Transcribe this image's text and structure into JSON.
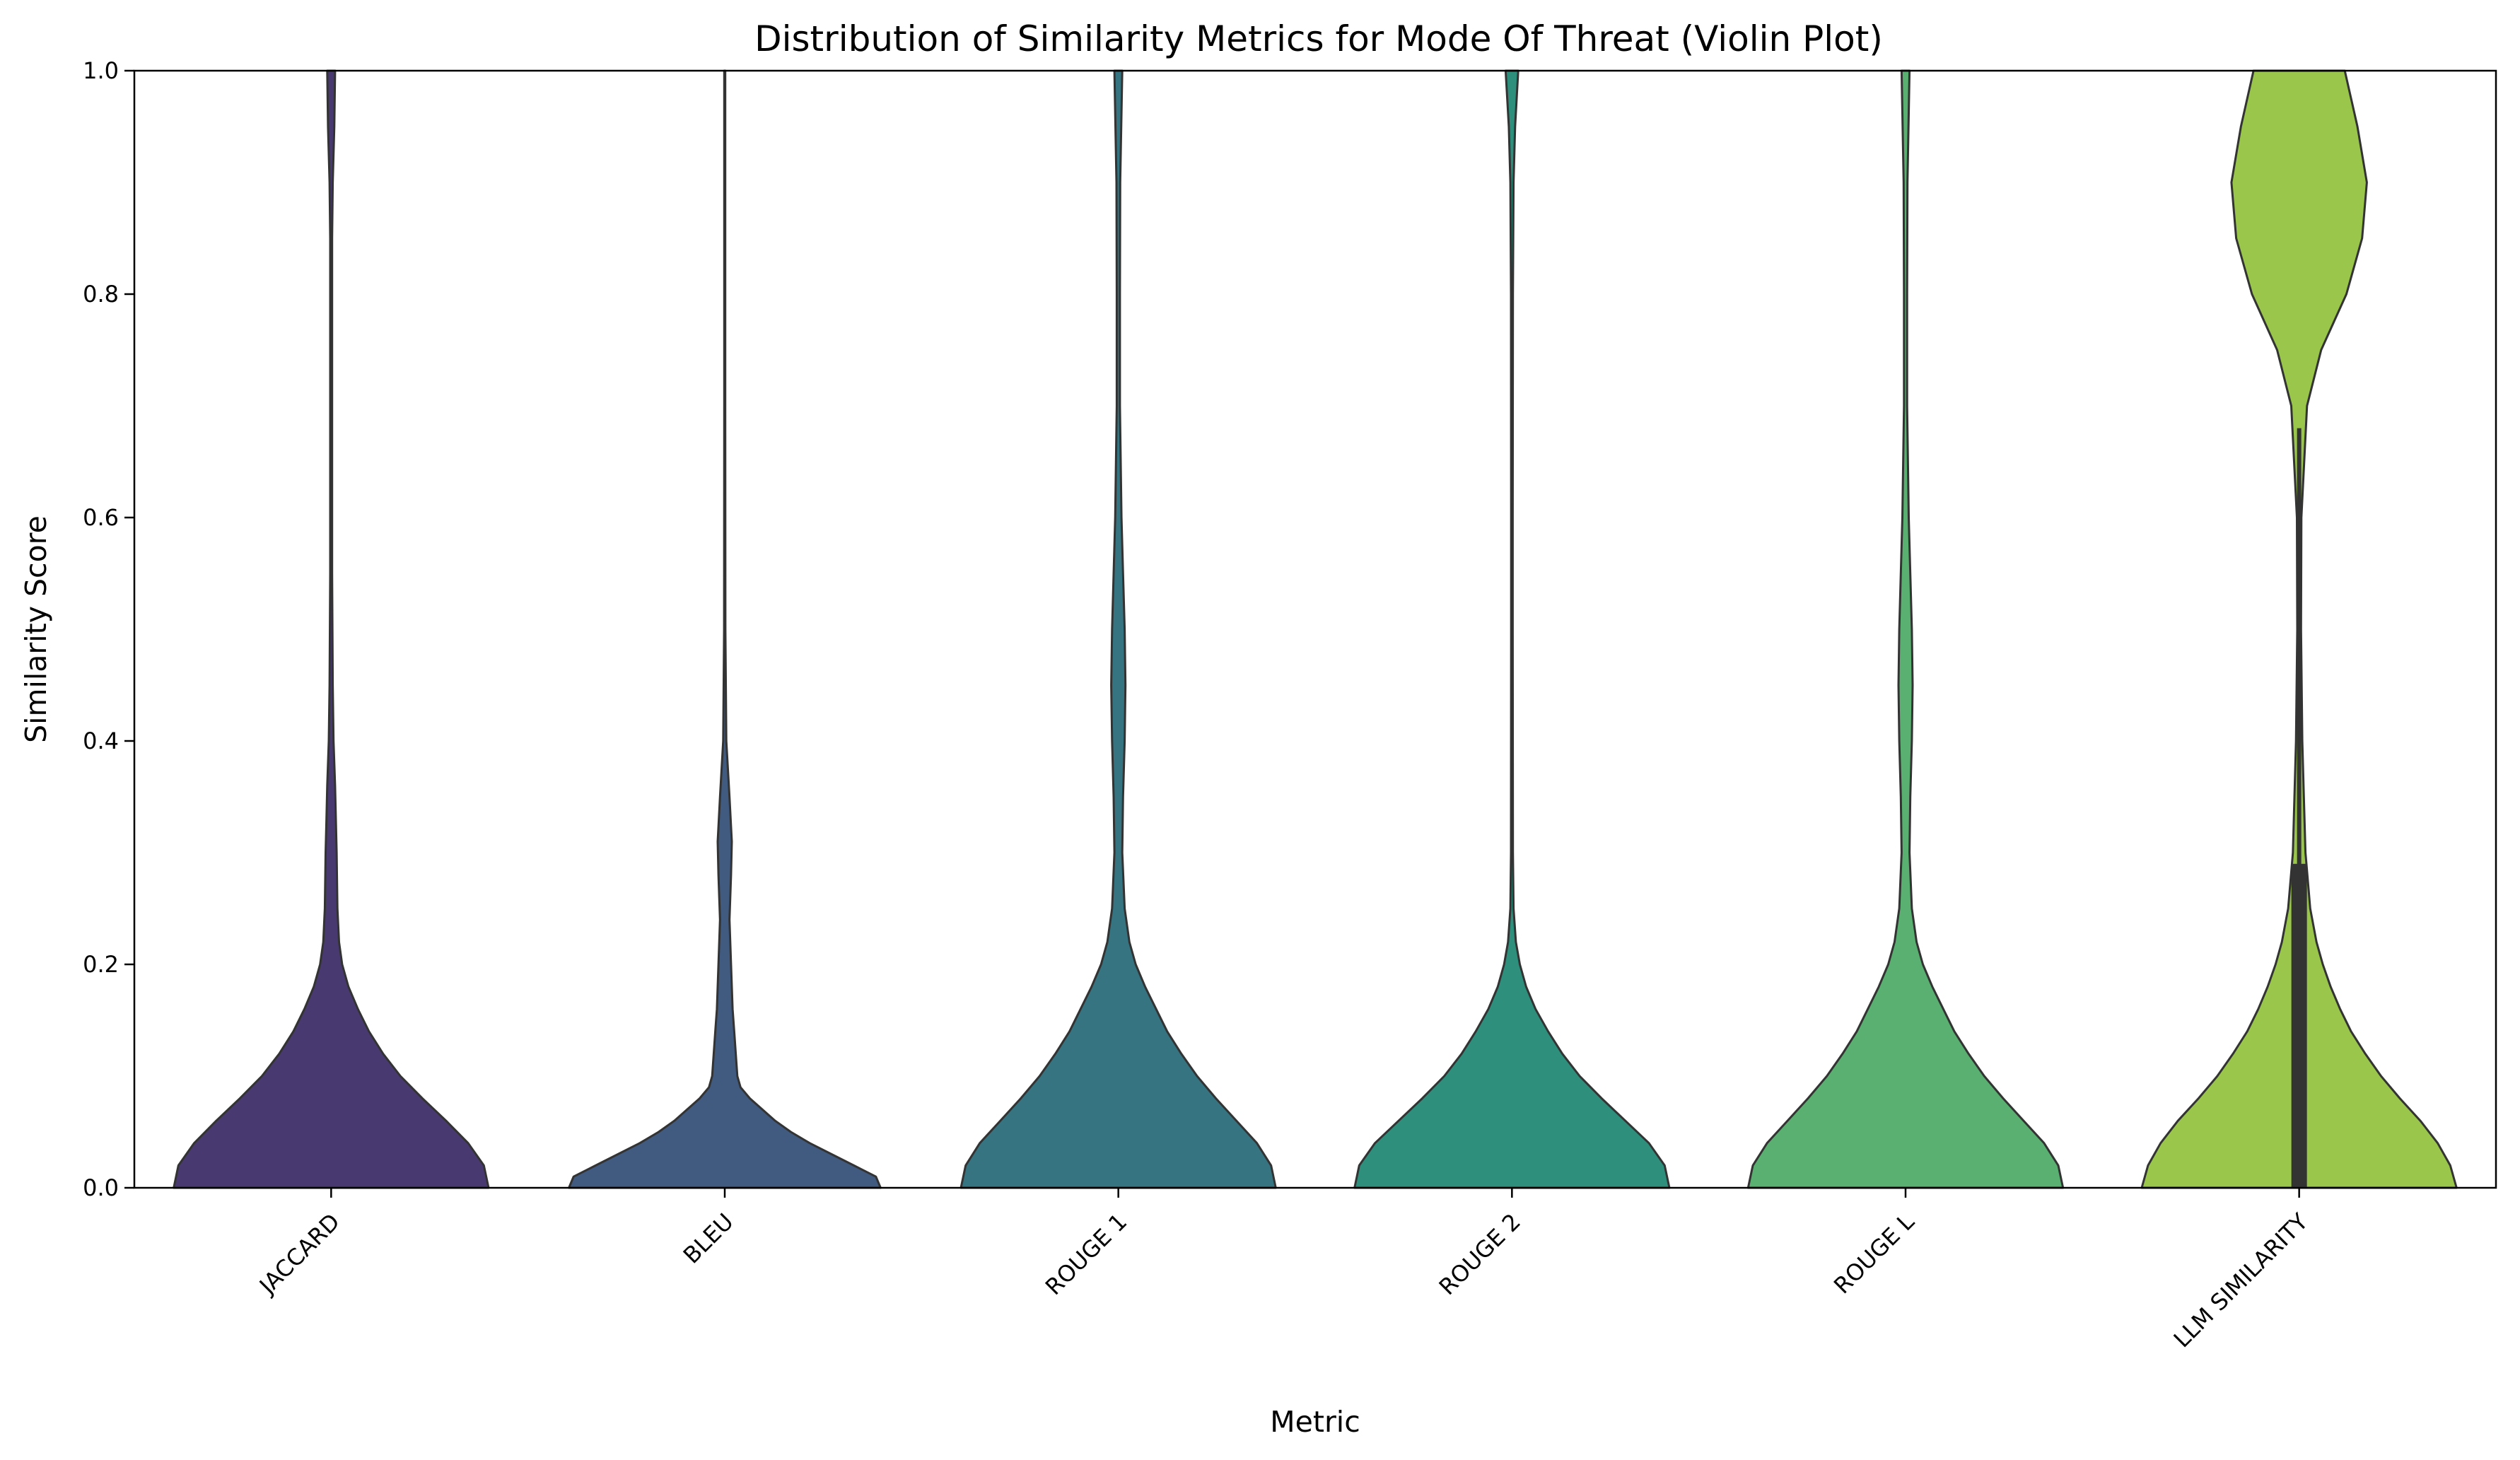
{
  "chart_data": {
    "type": "violin",
    "title": "Distribution of Similarity Metrics for Mode Of Threat (Violin Plot)",
    "xlabel": "Metric",
    "ylabel": "Similarity Score",
    "ylim": [
      0,
      1
    ],
    "yticks": [
      "0.0",
      "0.2",
      "0.4",
      "0.6",
      "0.8",
      "1.0"
    ],
    "grid": false,
    "categories": [
      "JACCARD",
      "BLEU",
      "ROUGE 1",
      "ROUGE 2",
      "ROUGE L",
      "LLM SIMILARITY"
    ],
    "violins": [
      {
        "category": "JACCARD",
        "color": "#483a70",
        "density": [
          [
            0.0,
            1.0
          ],
          [
            0.02,
            0.97
          ],
          [
            0.04,
            0.87
          ],
          [
            0.06,
            0.73
          ],
          [
            0.08,
            0.58
          ],
          [
            0.1,
            0.44
          ],
          [
            0.12,
            0.33
          ],
          [
            0.14,
            0.24
          ],
          [
            0.16,
            0.17
          ],
          [
            0.18,
            0.11
          ],
          [
            0.2,
            0.07
          ],
          [
            0.22,
            0.05
          ],
          [
            0.25,
            0.04
          ],
          [
            0.3,
            0.035
          ],
          [
            0.33,
            0.03
          ],
          [
            0.36,
            0.025
          ],
          [
            0.4,
            0.015
          ],
          [
            0.45,
            0.01
          ],
          [
            0.55,
            0.006
          ],
          [
            0.7,
            0.006
          ],
          [
            0.85,
            0.006
          ],
          [
            0.9,
            0.01
          ],
          [
            0.95,
            0.02
          ],
          [
            1.0,
            0.025
          ]
        ],
        "quartiles": null
      },
      {
        "category": "BLEU",
        "color": "#405a80",
        "density": [
          [
            0.0,
            0.99
          ],
          [
            0.01,
            0.96
          ],
          [
            0.02,
            0.82
          ],
          [
            0.03,
            0.68
          ],
          [
            0.04,
            0.54
          ],
          [
            0.05,
            0.42
          ],
          [
            0.06,
            0.32
          ],
          [
            0.07,
            0.24
          ],
          [
            0.08,
            0.16
          ],
          [
            0.09,
            0.1
          ],
          [
            0.1,
            0.08
          ],
          [
            0.12,
            0.07
          ],
          [
            0.14,
            0.06
          ],
          [
            0.16,
            0.05
          ],
          [
            0.2,
            0.04
          ],
          [
            0.24,
            0.03
          ],
          [
            0.28,
            0.04
          ],
          [
            0.31,
            0.045
          ],
          [
            0.35,
            0.03
          ],
          [
            0.4,
            0.01
          ],
          [
            0.5,
            0.004
          ],
          [
            0.7,
            0.003
          ],
          [
            1.0,
            0.003
          ]
        ],
        "quartiles": null
      },
      {
        "category": "ROUGE 1",
        "color": "#357480",
        "density": [
          [
            0.0,
            1.0
          ],
          [
            0.02,
            0.97
          ],
          [
            0.04,
            0.88
          ],
          [
            0.06,
            0.75
          ],
          [
            0.08,
            0.62
          ],
          [
            0.1,
            0.5
          ],
          [
            0.12,
            0.4
          ],
          [
            0.14,
            0.31
          ],
          [
            0.16,
            0.24
          ],
          [
            0.18,
            0.17
          ],
          [
            0.2,
            0.11
          ],
          [
            0.22,
            0.07
          ],
          [
            0.25,
            0.04
          ],
          [
            0.3,
            0.025
          ],
          [
            0.35,
            0.03
          ],
          [
            0.4,
            0.04
          ],
          [
            0.45,
            0.045
          ],
          [
            0.5,
            0.04
          ],
          [
            0.55,
            0.03
          ],
          [
            0.6,
            0.02
          ],
          [
            0.7,
            0.01
          ],
          [
            0.8,
            0.01
          ],
          [
            0.9,
            0.012
          ],
          [
            1.0,
            0.025
          ]
        ],
        "quartiles": null
      },
      {
        "category": "ROUGE 2",
        "color": "#2e8f7c",
        "density": [
          [
            0.0,
            1.0
          ],
          [
            0.02,
            0.97
          ],
          [
            0.04,
            0.87
          ],
          [
            0.06,
            0.72
          ],
          [
            0.08,
            0.57
          ],
          [
            0.1,
            0.43
          ],
          [
            0.12,
            0.32
          ],
          [
            0.14,
            0.23
          ],
          [
            0.16,
            0.15
          ],
          [
            0.18,
            0.09
          ],
          [
            0.2,
            0.05
          ],
          [
            0.22,
            0.025
          ],
          [
            0.25,
            0.01
          ],
          [
            0.3,
            0.006
          ],
          [
            0.5,
            0.005
          ],
          [
            0.6,
            0.005
          ],
          [
            0.8,
            0.006
          ],
          [
            0.9,
            0.01
          ],
          [
            0.95,
            0.02
          ],
          [
            1.0,
            0.04
          ]
        ],
        "quartiles": null
      },
      {
        "category": "ROUGE L",
        "color": "#59b070",
        "density": [
          [
            0.0,
            1.0
          ],
          [
            0.02,
            0.97
          ],
          [
            0.04,
            0.88
          ],
          [
            0.06,
            0.75
          ],
          [
            0.08,
            0.62
          ],
          [
            0.1,
            0.5
          ],
          [
            0.12,
            0.4
          ],
          [
            0.14,
            0.31
          ],
          [
            0.16,
            0.24
          ],
          [
            0.18,
            0.17
          ],
          [
            0.2,
            0.11
          ],
          [
            0.22,
            0.07
          ],
          [
            0.25,
            0.04
          ],
          [
            0.3,
            0.025
          ],
          [
            0.35,
            0.03
          ],
          [
            0.4,
            0.04
          ],
          [
            0.45,
            0.045
          ],
          [
            0.5,
            0.04
          ],
          [
            0.55,
            0.03
          ],
          [
            0.6,
            0.02
          ],
          [
            0.7,
            0.01
          ],
          [
            0.8,
            0.01
          ],
          [
            0.9,
            0.012
          ],
          [
            1.0,
            0.025
          ]
        ],
        "quartiles": null
      },
      {
        "category": "LLM SIMILARITY",
        "color": "#99c64b",
        "density": [
          [
            0.0,
            1.0
          ],
          [
            0.02,
            0.96
          ],
          [
            0.04,
            0.88
          ],
          [
            0.06,
            0.77
          ],
          [
            0.08,
            0.64
          ],
          [
            0.1,
            0.52
          ],
          [
            0.12,
            0.42
          ],
          [
            0.14,
            0.33
          ],
          [
            0.16,
            0.26
          ],
          [
            0.18,
            0.2
          ],
          [
            0.2,
            0.15
          ],
          [
            0.22,
            0.11
          ],
          [
            0.25,
            0.07
          ],
          [
            0.3,
            0.04
          ],
          [
            0.35,
            0.03
          ],
          [
            0.4,
            0.02
          ],
          [
            0.5,
            0.012
          ],
          [
            0.6,
            0.014
          ],
          [
            0.7,
            0.05
          ],
          [
            0.75,
            0.14
          ],
          [
            0.8,
            0.3
          ],
          [
            0.85,
            0.4
          ],
          [
            0.9,
            0.43
          ],
          [
            0.95,
            0.37
          ],
          [
            1.0,
            0.29
          ]
        ],
        "quartiles": {
          "q1": 0.0,
          "q3": 0.29,
          "whisker_low": 0.0,
          "whisker_high": 0.68
        }
      }
    ]
  }
}
